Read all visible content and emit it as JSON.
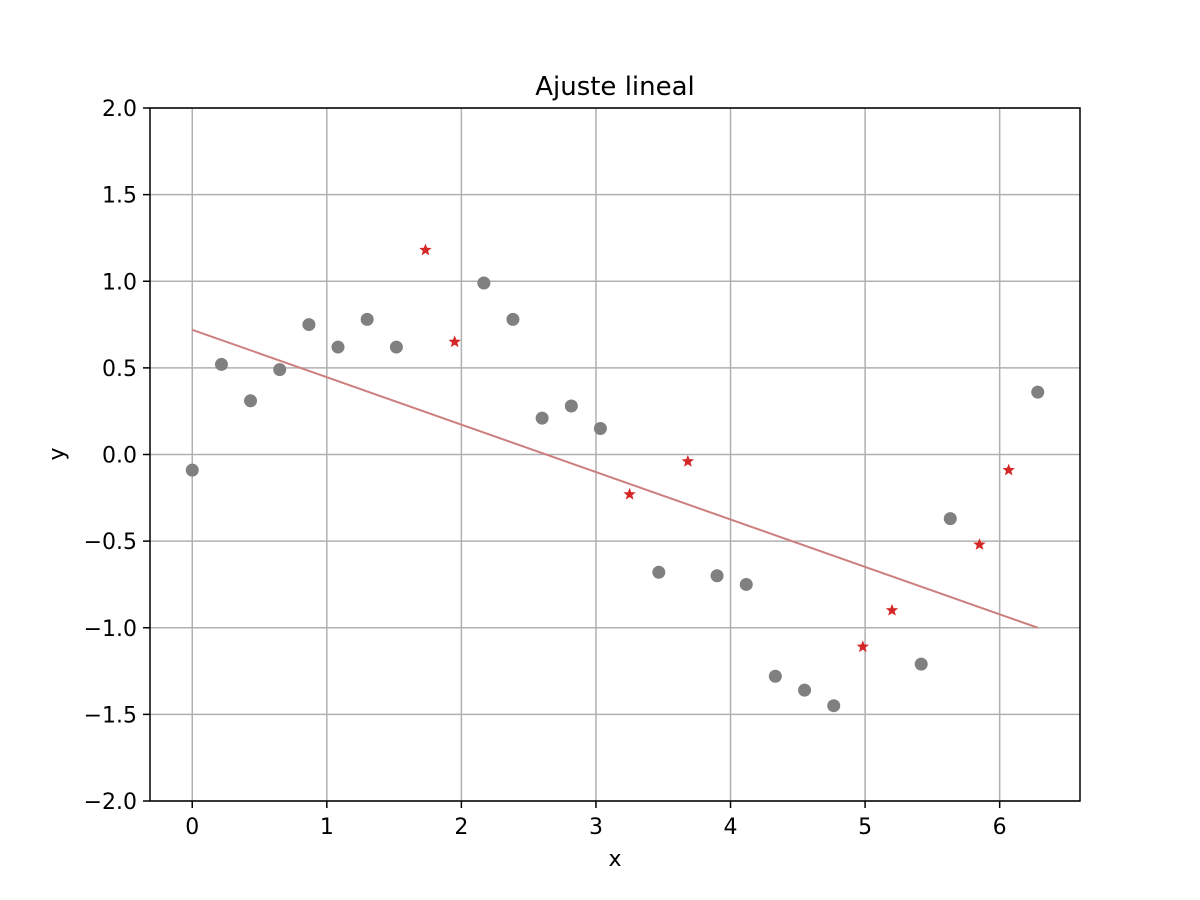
{
  "chart_data": {
    "type": "scatter",
    "title": "Ajuste lineal",
    "xlabel": "x",
    "ylabel": "y",
    "xlim": [
      -0.314,
      6.597
    ],
    "ylim": [
      -2.0,
      2.0
    ],
    "xticks": [
      0,
      1,
      2,
      3,
      4,
      5,
      6
    ],
    "xtick_labels": [
      "0",
      "1",
      "2",
      "3",
      "4",
      "5",
      "6"
    ],
    "yticks": [
      -2.0,
      -1.5,
      -1.0,
      -0.5,
      0.0,
      0.5,
      1.0,
      1.5,
      2.0
    ],
    "ytick_labels": [
      "−2.0",
      "−1.5",
      "−1.0",
      "−0.5",
      "0.0",
      "0.5",
      "1.0",
      "1.5",
      "2.0"
    ],
    "grid": true,
    "series": [
      {
        "marker": "circle",
        "color": "#808080",
        "x": [
          0.0,
          0.217,
          0.433,
          0.65,
          0.867,
          1.083,
          1.3,
          1.517,
          2.167,
          2.383,
          2.6,
          2.817,
          3.033,
          3.467,
          3.9,
          4.117,
          4.333,
          4.55,
          4.767,
          5.417,
          5.633,
          6.283
        ],
        "y": [
          -0.09,
          0.52,
          0.31,
          0.49,
          0.75,
          0.62,
          0.78,
          0.62,
          0.99,
          0.78,
          0.21,
          0.28,
          0.15,
          -0.68,
          -0.7,
          -0.75,
          -1.28,
          -1.36,
          -1.45,
          -1.21,
          -0.37,
          0.36
        ]
      },
      {
        "marker": "star",
        "color": "#d62728",
        "x": [
          1.733,
          1.95,
          3.25,
          3.683,
          4.983,
          5.2,
          5.85,
          6.067
        ],
        "y": [
          1.18,
          0.65,
          -0.23,
          -0.04,
          -1.11,
          -0.9,
          -0.52,
          -0.09
        ]
      },
      {
        "marker": "line",
        "color": "#cd7f7f",
        "x": [
          0.0,
          6.283
        ],
        "y": [
          0.72,
          -1.0
        ]
      }
    ]
  }
}
